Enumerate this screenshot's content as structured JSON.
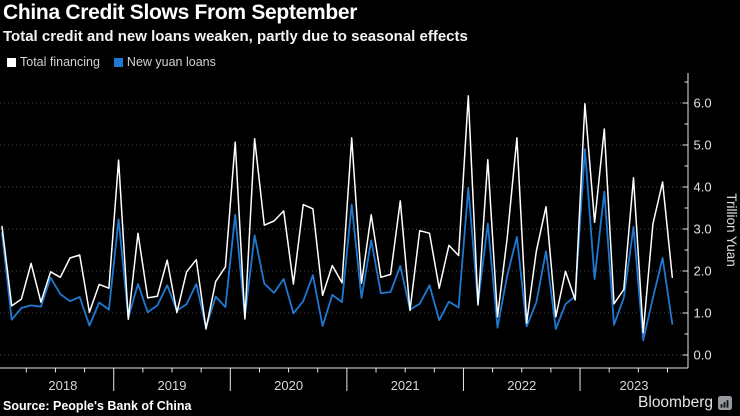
{
  "header": {
    "title": "China Credit Slows From September",
    "subtitle": "Total credit and new loans weaken, partly due to seasonal effects"
  },
  "legend": [
    {
      "label": "Total financing",
      "color": "#ffffff"
    },
    {
      "label": "New yuan loans",
      "color": "#1f78d1"
    }
  ],
  "chart_data": {
    "type": "line",
    "frequency": "monthly",
    "start": "Jan 2018",
    "end": "Oct 2023",
    "years": [
      "2018",
      "2019",
      "2020",
      "2021",
      "2022",
      "2023"
    ],
    "ylabel": "Trillion Yuan",
    "yticks": [
      "0.0",
      "1.0",
      "2.0",
      "3.0",
      "4.0",
      "5.0",
      "6.0"
    ],
    "ylim": [
      0,
      6.7
    ],
    "grid": "dotted-horizontal",
    "legend_position": "top-left",
    "series": [
      {
        "name": "Total financing",
        "color": "#ffffff",
        "values": [
          3.06,
          1.17,
          1.33,
          2.18,
          1.26,
          1.98,
          1.85,
          2.31,
          2.38,
          1.02,
          1.68,
          1.59,
          4.64,
          0.85,
          2.9,
          1.36,
          1.4,
          2.26,
          1.01,
          1.98,
          2.27,
          0.62,
          1.75,
          2.1,
          5.07,
          0.86,
          5.15,
          3.09,
          3.19,
          3.43,
          1.69,
          3.58,
          3.48,
          1.42,
          2.13,
          1.72,
          5.17,
          1.71,
          3.34,
          1.85,
          1.92,
          3.67,
          1.06,
          2.96,
          2.9,
          1.59,
          2.61,
          2.37,
          6.17,
          1.19,
          4.65,
          0.91,
          2.79,
          5.17,
          0.76,
          2.47,
          3.53,
          0.91,
          1.99,
          1.31,
          5.98,
          3.16,
          5.38,
          1.22,
          1.56,
          4.22,
          0.53,
          3.12,
          4.12,
          1.85
        ]
      },
      {
        "name": "New yuan loans",
        "color": "#1f78d1",
        "values": [
          2.9,
          0.84,
          1.12,
          1.18,
          1.15,
          1.84,
          1.45,
          1.28,
          1.38,
          0.7,
          1.25,
          1.08,
          3.23,
          0.89,
          1.69,
          1.02,
          1.18,
          1.66,
          1.06,
          1.21,
          1.69,
          0.66,
          1.39,
          1.14,
          3.34,
          0.91,
          2.85,
          1.7,
          1.48,
          1.81,
          0.99,
          1.28,
          1.9,
          0.69,
          1.43,
          1.26,
          3.58,
          1.36,
          2.73,
          1.47,
          1.5,
          2.12,
          1.08,
          1.22,
          1.66,
          0.83,
          1.27,
          1.13,
          3.98,
          1.23,
          3.13,
          0.65,
          1.89,
          2.81,
          0.68,
          1.25,
          2.47,
          0.62,
          1.21,
          1.4,
          4.9,
          1.81,
          3.89,
          0.72,
          1.36,
          3.05,
          0.35,
          1.36,
          2.31,
          0.74
        ]
      }
    ]
  },
  "footer": {
    "source": "Source: People's Bank of China",
    "brand": "Bloomberg",
    "brand_icon": "bar-chart-icon"
  },
  "colors": {
    "background": "#000000",
    "axis": "#e8e8e8",
    "grid": "#4d4d4d",
    "tick_label": "#e0e0e0",
    "year_label": "#d6d6d6"
  }
}
